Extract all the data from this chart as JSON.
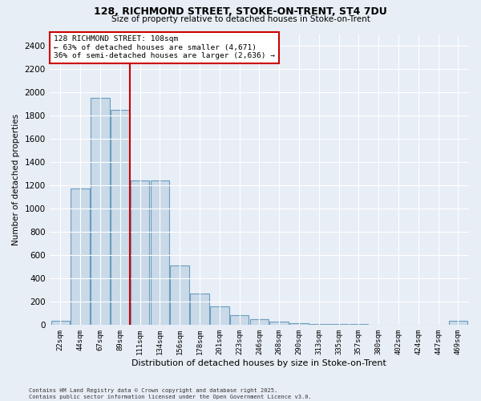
{
  "title1": "128, RICHMOND STREET, STOKE-ON-TRENT, ST4 7DU",
  "title2": "Size of property relative to detached houses in Stoke-on-Trent",
  "xlabel": "Distribution of detached houses by size in Stoke-on-Trent",
  "ylabel": "Number of detached properties",
  "categories": [
    "22sqm",
    "44sqm",
    "67sqm",
    "89sqm",
    "111sqm",
    "134sqm",
    "156sqm",
    "178sqm",
    "201sqm",
    "223sqm",
    "246sqm",
    "268sqm",
    "290sqm",
    "313sqm",
    "335sqm",
    "357sqm",
    "380sqm",
    "402sqm",
    "424sqm",
    "447sqm",
    "469sqm"
  ],
  "values": [
    30,
    1170,
    1950,
    1850,
    1240,
    1240,
    510,
    270,
    155,
    85,
    50,
    25,
    15,
    8,
    4,
    3,
    2,
    1,
    1,
    1,
    30
  ],
  "bar_color": "#c9d9e8",
  "bar_edge_color": "#6a9cbf",
  "vline_x": 3.5,
  "vline_color": "#cc0000",
  "annotation_text": "128 RICHMOND STREET: 108sqm\n← 63% of detached houses are smaller (4,671)\n36% of semi-detached houses are larger (2,636) →",
  "annotation_box_color": "#ffffff",
  "annotation_box_edge_color": "#cc0000",
  "ylim": [
    0,
    2500
  ],
  "yticks": [
    0,
    200,
    400,
    600,
    800,
    1000,
    1200,
    1400,
    1600,
    1800,
    2000,
    2200,
    2400
  ],
  "bg_color": "#e8eef5",
  "grid_color": "#ffffff",
  "footer1": "Contains HM Land Registry data © Crown copyright and database right 2025.",
  "footer2": "Contains public sector information licensed under the Open Government Licence v3.0."
}
